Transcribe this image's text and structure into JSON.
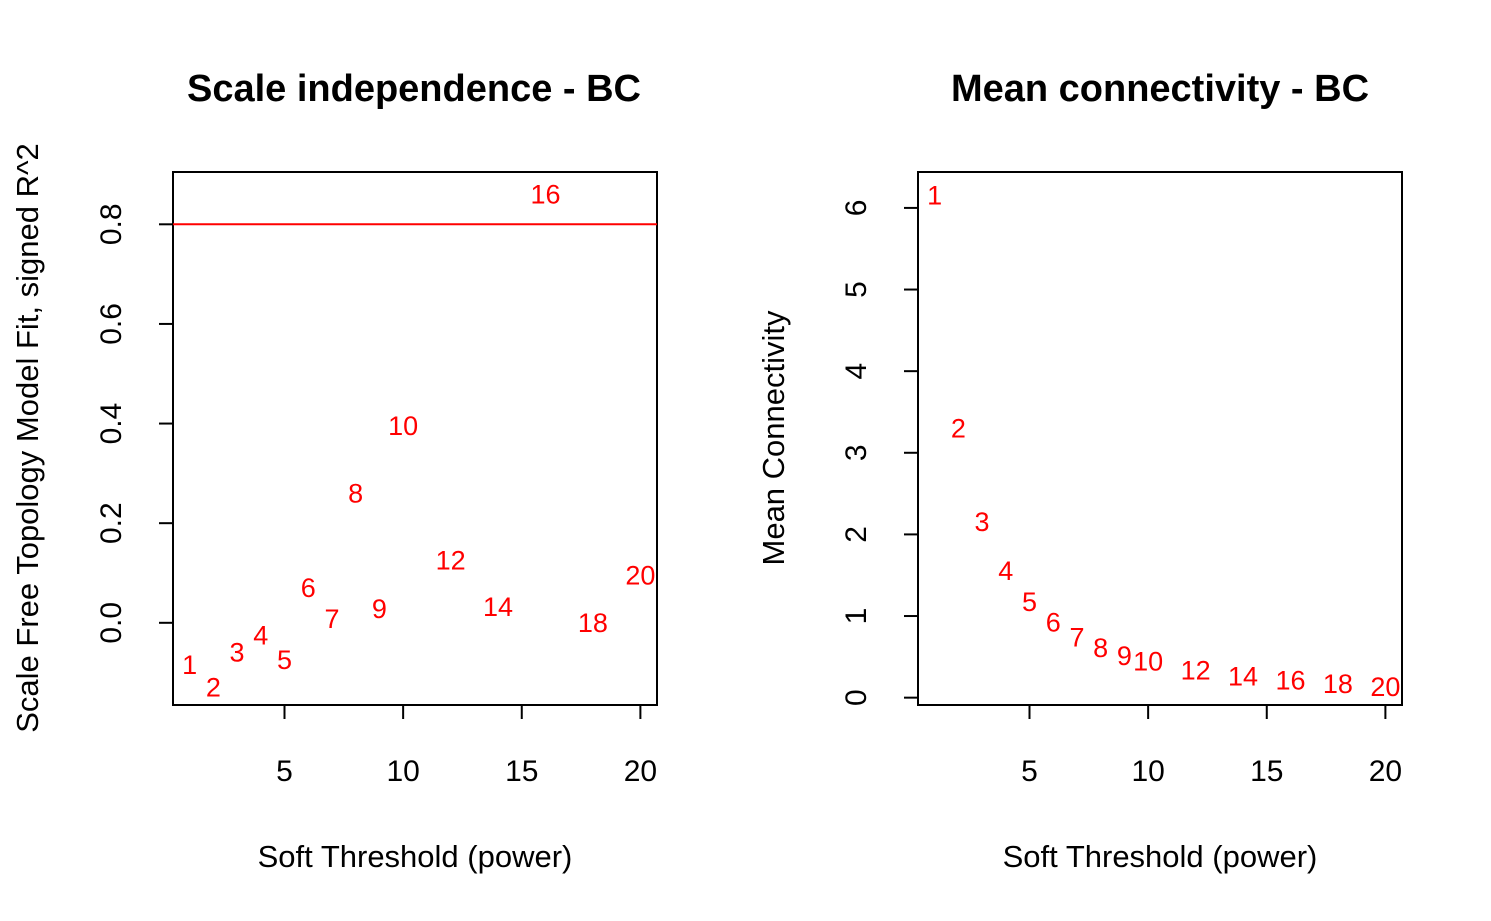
{
  "chart_data": [
    {
      "type": "scatter",
      "title": "Scale independence - BC",
      "xlabel": "Soft Threshold (power)",
      "ylabel": "Scale Free Topology Model Fit, signed R^2",
      "xlim": [
        0.3,
        20.7
      ],
      "ylim": [
        -0.165,
        0.905
      ],
      "xticks": [
        5,
        10,
        15,
        20
      ],
      "yticks": [
        0.0,
        0.2,
        0.4,
        0.6,
        0.8
      ],
      "ytick_labels": [
        "0.0",
        "0.2",
        "0.4",
        "0.6",
        "0.8"
      ],
      "hline": 0.8,
      "hline_color": "#ff0000",
      "point_color": "#ff0000",
      "points": [
        {
          "x": 1,
          "y": -0.085,
          "label": "1"
        },
        {
          "x": 2,
          "y": -0.13,
          "label": "2"
        },
        {
          "x": 3,
          "y": -0.06,
          "label": "3"
        },
        {
          "x": 4,
          "y": -0.025,
          "label": "4"
        },
        {
          "x": 5,
          "y": -0.075,
          "label": "5"
        },
        {
          "x": 6,
          "y": 0.07,
          "label": "6"
        },
        {
          "x": 7,
          "y": 0.008,
          "label": "7"
        },
        {
          "x": 8,
          "y": 0.26,
          "label": "8"
        },
        {
          "x": 9,
          "y": 0.028,
          "label": "9"
        },
        {
          "x": 10,
          "y": 0.395,
          "label": "10"
        },
        {
          "x": 12,
          "y": 0.125,
          "label": "12"
        },
        {
          "x": 14,
          "y": 0.032,
          "label": "14"
        },
        {
          "x": 16,
          "y": 0.86,
          "label": "16"
        },
        {
          "x": 18,
          "y": 0.0,
          "label": "18"
        },
        {
          "x": 20,
          "y": 0.095,
          "label": "20"
        }
      ]
    },
    {
      "type": "scatter",
      "title": "Mean connectivity - BC",
      "xlabel": "Soft Threshold (power)",
      "ylabel": "Mean Connectivity",
      "xlim": [
        0.3,
        20.7
      ],
      "ylim": [
        -0.09,
        6.44
      ],
      "xticks": [
        5,
        10,
        15,
        20
      ],
      "yticks": [
        0,
        1,
        2,
        3,
        4,
        5,
        6
      ],
      "ytick_labels": [
        "0",
        "1",
        "2",
        "3",
        "4",
        "5",
        "6"
      ],
      "point_color": "#ff0000",
      "points": [
        {
          "x": 1,
          "y": 6.15,
          "label": "1"
        },
        {
          "x": 2,
          "y": 3.3,
          "label": "2"
        },
        {
          "x": 3,
          "y": 2.15,
          "label": "3"
        },
        {
          "x": 4,
          "y": 1.55,
          "label": "4"
        },
        {
          "x": 5,
          "y": 1.17,
          "label": "5"
        },
        {
          "x": 6,
          "y": 0.92,
          "label": "6"
        },
        {
          "x": 7,
          "y": 0.74,
          "label": "7"
        },
        {
          "x": 8,
          "y": 0.61,
          "label": "8"
        },
        {
          "x": 9,
          "y": 0.51,
          "label": "9"
        },
        {
          "x": 10,
          "y": 0.44,
          "label": "10"
        },
        {
          "x": 12,
          "y": 0.33,
          "label": "12"
        },
        {
          "x": 14,
          "y": 0.26,
          "label": "14"
        },
        {
          "x": 16,
          "y": 0.21,
          "label": "16"
        },
        {
          "x": 18,
          "y": 0.17,
          "label": "18"
        },
        {
          "x": 20,
          "y": 0.13,
          "label": "20"
        }
      ]
    }
  ]
}
